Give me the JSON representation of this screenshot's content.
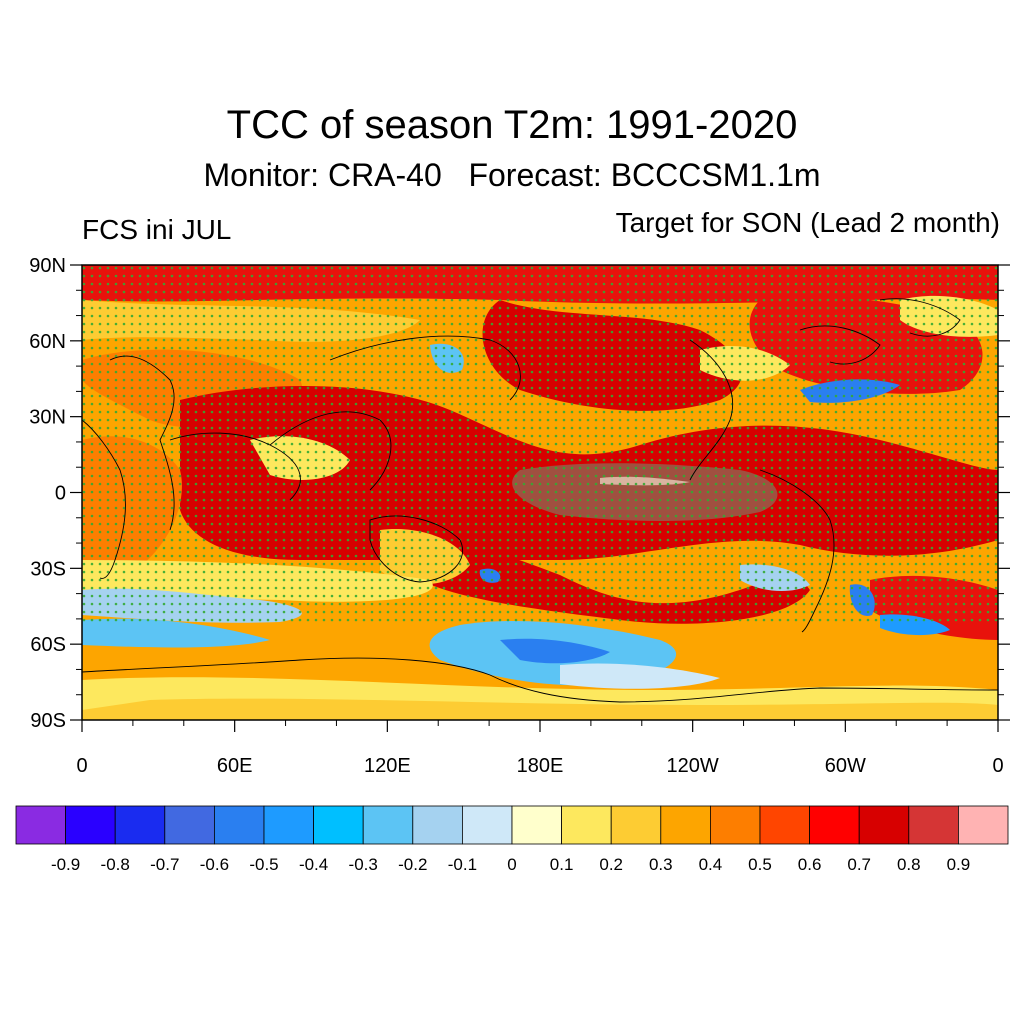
{
  "title": "TCC of season T2m: 1991-2020",
  "subtitle": "Monitor: CRA-40   Forecast: BCCCSM1.1m",
  "left_label": "FCS ini JUL",
  "right_label": "Target for SON (Lead 2 month)",
  "lat_ticks": [
    "90N",
    "60N",
    "30N",
    "0",
    "30S",
    "60S",
    "90S"
  ],
  "lon_ticks": [
    "0",
    "60E",
    "120E",
    "180E",
    "120W",
    "60W",
    "0"
  ],
  "colorbar": {
    "colors": [
      "#8a2be2",
      "#2a00ff",
      "#1a2cf0",
      "#4169e1",
      "#2a7ff0",
      "#1e9bff",
      "#00bfff",
      "#5cc4f4",
      "#a5d2f0",
      "#cfe8f8",
      "#ffffcc",
      "#fde85e",
      "#fdcc33",
      "#fda500",
      "#fd7e00",
      "#ff4500",
      "#ff0000",
      "#d70000",
      "#d53535",
      "#ffb3b3"
    ],
    "labels": [
      "-0.9",
      "-0.8",
      "-0.7",
      "-0.6",
      "-0.5",
      "-0.4",
      "-0.3",
      "-0.2",
      "-0.1",
      "0",
      "0.1",
      "0.2",
      "0.3",
      "0.4",
      "0.5",
      "0.6",
      "0.7",
      "0.8",
      "0.9"
    ]
  },
  "significance_dot_color": "#33aa33",
  "coastline_color": "#000000"
}
